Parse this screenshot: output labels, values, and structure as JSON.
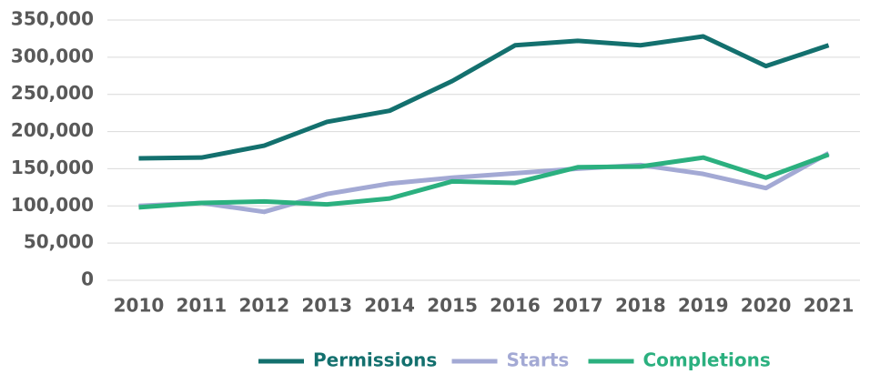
{
  "chart_data": {
    "type": "line",
    "categories": [
      "2010",
      "2011",
      "2012",
      "2013",
      "2014",
      "2015",
      "2016",
      "2017",
      "2018",
      "2019",
      "2020",
      "2021"
    ],
    "series": [
      {
        "name": "Permissions",
        "color": "#13706e",
        "values": [
          164000,
          165000,
          181000,
          213000,
          228000,
          268000,
          316000,
          322000,
          316000,
          328000,
          288000,
          316000
        ]
      },
      {
        "name": "Starts",
        "color": "#a3a9d4",
        "values": [
          100000,
          104000,
          92000,
          116000,
          130000,
          138000,
          144000,
          150000,
          155000,
          143000,
          124000,
          171000
        ]
      },
      {
        "name": "Completions",
        "color": "#2bb07f",
        "values": [
          98000,
          104000,
          106000,
          102000,
          110000,
          133000,
          131000,
          152000,
          153000,
          165000,
          138000,
          169000
        ]
      }
    ],
    "ylim": [
      0,
      350000
    ],
    "yticks": [
      0,
      {
        "value": 50000,
        "label": "50,000"
      },
      {
        "value": 100000,
        "label": "100,000"
      },
      {
        "value": 150000,
        "label": "150,000"
      },
      {
        "value": 200000,
        "label": "200,000"
      },
      {
        "value": 250000,
        "label": "250,000"
      },
      {
        "value": 300000,
        "label": "300,000"
      },
      {
        "value": 350000,
        "label": "350,000"
      }
    ],
    "grid": true,
    "legend": "bottom"
  }
}
